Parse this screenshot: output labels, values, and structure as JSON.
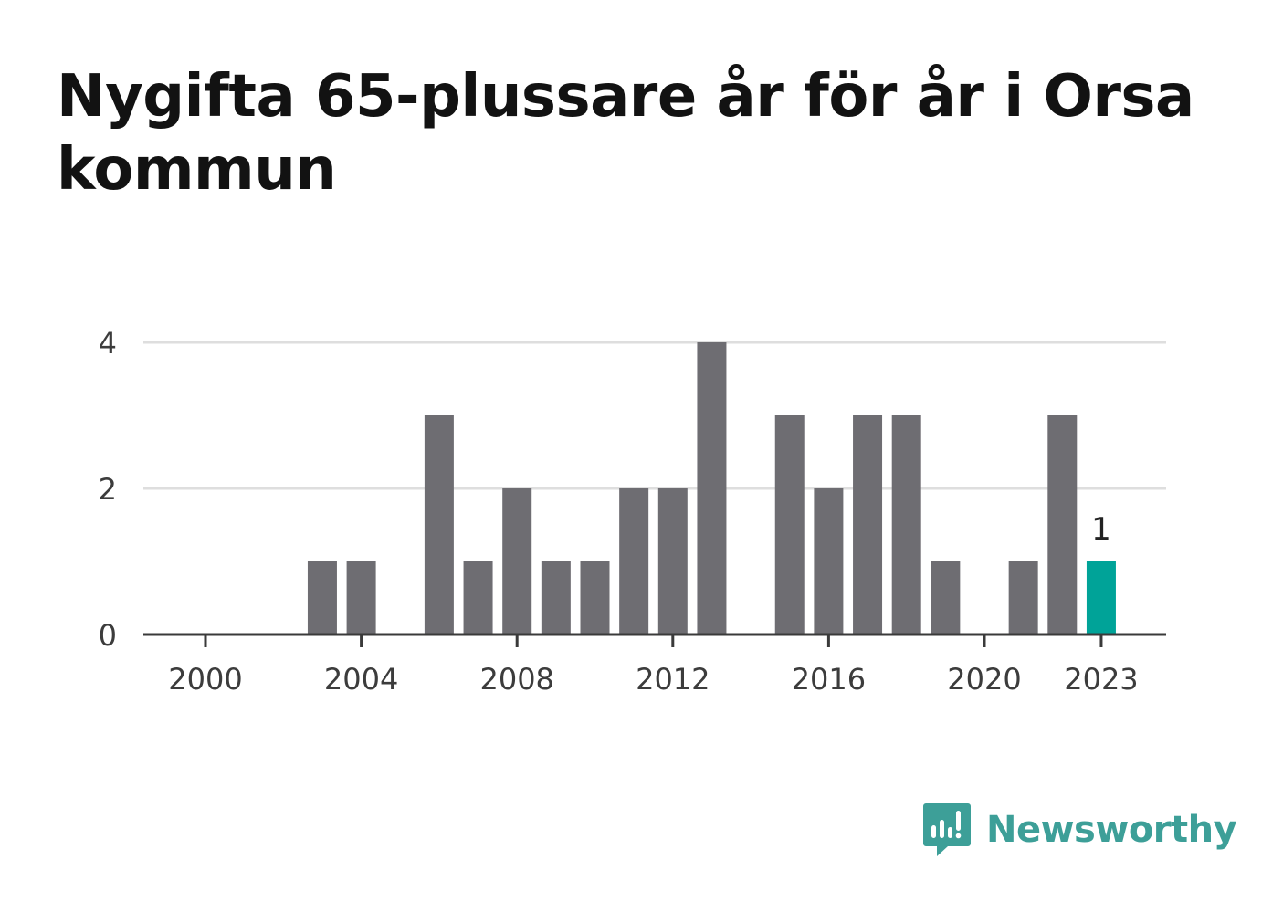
{
  "title": "Nygifta 65-plussare år för år i Orsa kommun",
  "brand": {
    "name": "Newsworthy",
    "icon": "newsworthy-logo-icon",
    "color": "#3d9f98"
  },
  "chart_data": {
    "type": "bar",
    "title": "Nygifta 65-plussare år för år i Orsa kommun",
    "xlabel": "",
    "ylabel": "",
    "categories": [
      2000,
      2001,
      2002,
      2003,
      2004,
      2005,
      2006,
      2007,
      2008,
      2009,
      2010,
      2011,
      2012,
      2013,
      2014,
      2015,
      2016,
      2017,
      2018,
      2019,
      2020,
      2021,
      2022,
      2023
    ],
    "values": [
      0,
      0,
      0,
      1,
      1,
      0,
      3,
      1,
      2,
      1,
      1,
      2,
      2,
      4,
      0,
      3,
      2,
      3,
      3,
      1,
      0,
      1,
      3,
      1
    ],
    "x_tick_labels": [
      "2000",
      "2004",
      "2008",
      "2012",
      "2016",
      "2020",
      "2023"
    ],
    "y_ticks": [
      0,
      2,
      4
    ],
    "ylim": [
      0,
      4
    ],
    "grid": true,
    "highlight": {
      "category": 2023,
      "label": "1",
      "color": "#00a398"
    },
    "bar_color": "#6e6d72"
  }
}
